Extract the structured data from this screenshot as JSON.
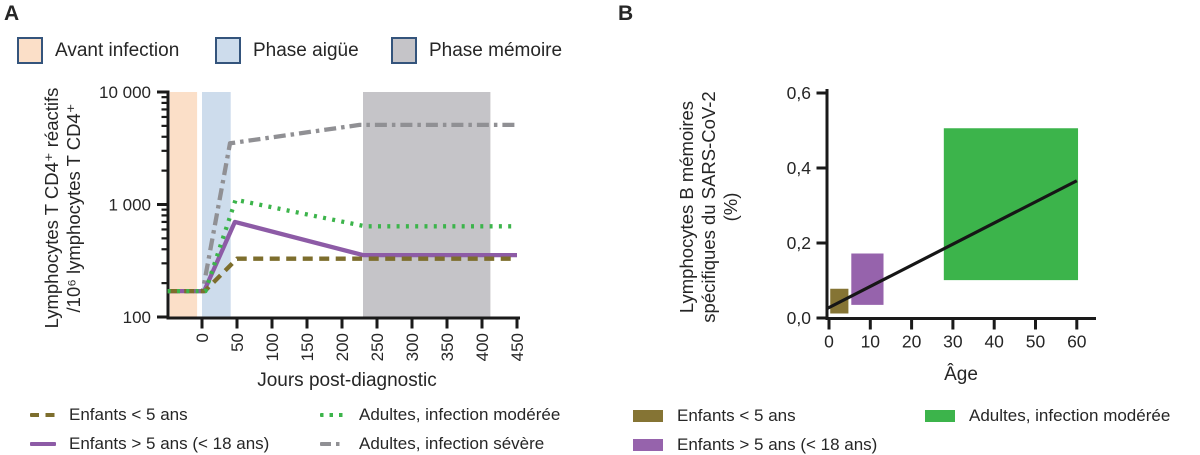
{
  "figure": {
    "panel_a": {
      "label": "A"
    },
    "panel_b": {
      "label": "B"
    },
    "colors": {
      "swatch_border": "#34547c",
      "axis": "#1a1a1a",
      "text": "#262626"
    }
  },
  "chart_data": [
    {
      "panel": "A",
      "type": "line",
      "yscale": "log",
      "xlabel": "Jours post-diagnostic",
      "ylabel_lines": [
        "Lymphocytes T CD4⁺ réactifs",
        "/10⁶ lymphocytes T CD4⁺"
      ],
      "xlim": [
        -49,
        450
      ],
      "ylim": [
        100,
        10000
      ],
      "x_ticks": [
        0,
        50,
        100,
        150,
        200,
        250,
        300,
        350,
        400,
        450
      ],
      "y_ticks": [
        {
          "value": 100,
          "label": "100"
        },
        {
          "value": 1000,
          "label": "1 000"
        },
        {
          "value": 10000,
          "label": "10 000"
        }
      ],
      "bands": [
        {
          "label": "Avant infection",
          "x0": -46,
          "x1": -7,
          "color": "#fbdfc8"
        },
        {
          "label": "Phase aigüe",
          "x0": 0,
          "x1": 41,
          "color": "#cddcec"
        },
        {
          "label": "Phase mémoire",
          "x0": 230,
          "x1": 412,
          "color": "#c5c4c8"
        }
      ],
      "series": [
        {
          "name": "Enfants < 5 ans",
          "style": "dashed",
          "color": "#7d6e2d",
          "points": [
            [
              -49,
              170
            ],
            [
              4,
              170
            ],
            [
              50,
              330
            ],
            [
              450,
              330
            ]
          ]
        },
        {
          "name": "Enfants > 5 ans (< 18 ans)",
          "style": "solid",
          "color": "#8d5ba6",
          "points": [
            [
              -49,
              170
            ],
            [
              3,
              170
            ],
            [
              47,
              700
            ],
            [
              230,
              355
            ],
            [
              450,
              355
            ]
          ]
        },
        {
          "name": "Adultes, infection modérée",
          "style": "dotted",
          "color": "#3cb44b",
          "points": [
            [
              -49,
              170
            ],
            [
              5,
              170
            ],
            [
              48,
              1100
            ],
            [
              233,
              640
            ],
            [
              450,
              640
            ]
          ]
        },
        {
          "name": "Adultes, infection sévère",
          "style": "dashdot",
          "color": "#909094",
          "points": [
            [
              -49,
              170
            ],
            [
              1,
              170
            ],
            [
              40,
              3500
            ],
            [
              225,
              5100
            ],
            [
              450,
              5100
            ]
          ]
        }
      ]
    },
    {
      "panel": "B",
      "type": "box",
      "xlabel": "Âge",
      "ylabel_lines": [
        "Lymphocytes B mémoires",
        "spécifiques du SARS-CoV-2",
        "(%)"
      ],
      "xlim": [
        0,
        60
      ],
      "ylim": [
        0,
        0.6
      ],
      "x_ticks": [
        0,
        10,
        20,
        30,
        40,
        50,
        60
      ],
      "y_ticks": [
        {
          "value": 0,
          "label": "0,0"
        },
        {
          "value": 0.2,
          "label": "0,2"
        },
        {
          "value": 0.4,
          "label": "0,4"
        },
        {
          "value": 0.6,
          "label": "0,6"
        }
      ],
      "boxes": [
        {
          "name": "Enfants < 5 ans",
          "color": "#857434",
          "x0": 0.3,
          "x1": 4.7,
          "y0": 0.012,
          "y1": 0.078
        },
        {
          "name": "Enfants > 5 ans (< 18 ans)",
          "color": "#9663ac",
          "x0": 5.4,
          "x1": 13.2,
          "y0": 0.035,
          "y1": 0.172
        },
        {
          "name": "Adultes, infection modérée",
          "color": "#3cb44b",
          "x0": 27.8,
          "x1": 60.3,
          "y0": 0.101,
          "y1": 0.506
        }
      ],
      "trend_line": {
        "color": "#161616",
        "x0": -0.5,
        "y0": 0.025,
        "x1": 60,
        "y1": 0.366
      }
    }
  ]
}
